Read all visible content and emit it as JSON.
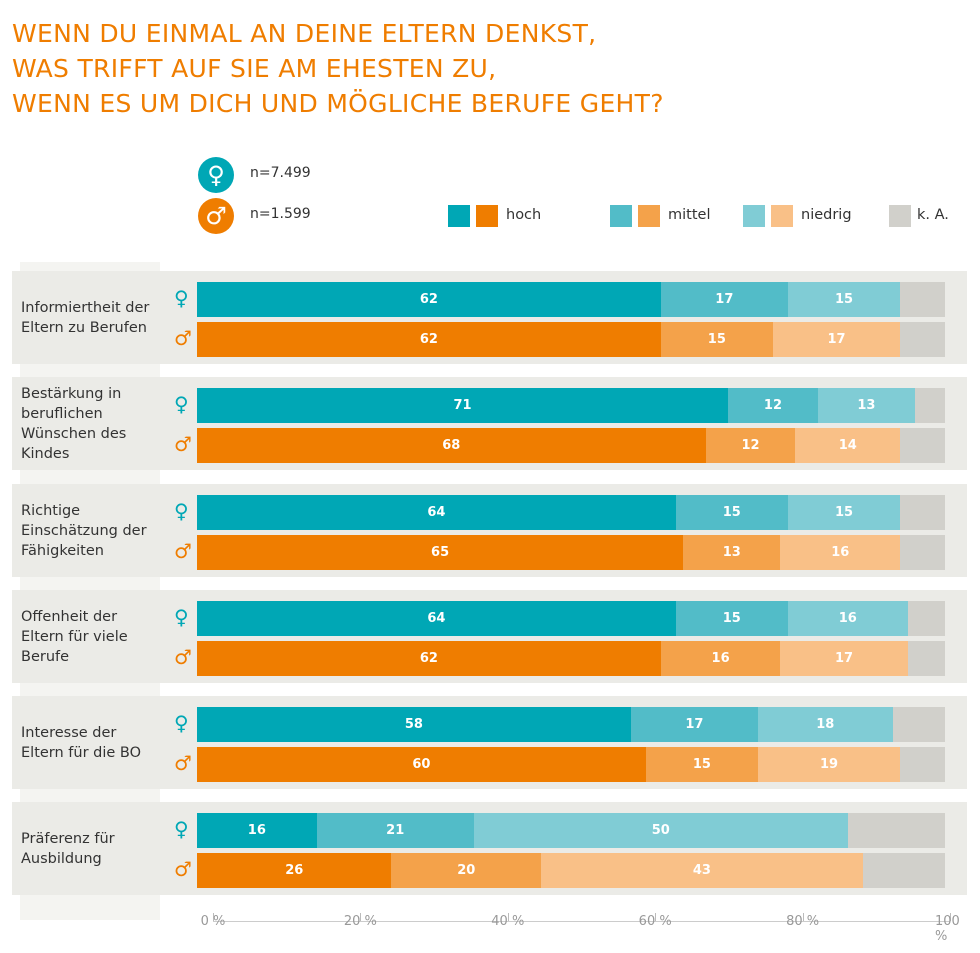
{
  "title": [
    "WENN DU EINMAL AN DEINE ELTERN DENKST,",
    "WAS TRIFFT AUF SIE AM EHESTEN ZU,",
    "WENN ES UM DICH UND MÖGLICHE BERUFE GEHT?"
  ],
  "samples": {
    "female": "n=7.499",
    "male": "n=1.599"
  },
  "icons": {
    "female": "female-symbol",
    "male": "male-symbol"
  },
  "colors": {
    "female": [
      "#00a7b5",
      "#52bcc8",
      "#80ccd5"
    ],
    "male": [
      "#ef7d00",
      "#f4a24a",
      "#f9c087"
    ],
    "ka": "#d1d0cb",
    "title": "#ef7d00"
  },
  "chart_data": {
    "type": "bar",
    "orientation": "horizontal",
    "stacked": true,
    "legend": [
      "hoch",
      "mittel",
      "niedrig",
      "k. A."
    ],
    "xlim": [
      0,
      100
    ],
    "ticks": [
      "0 %",
      "20 %",
      "40 %",
      "60 %",
      "80 %",
      "100 %"
    ],
    "categories": [
      {
        "label": "Informiertheit der Eltern zu Berufen",
        "female": [
          62,
          17,
          15
        ],
        "male": [
          62,
          15,
          17
        ]
      },
      {
        "label": "Bestärkung in beruflichen Wünschen des Kindes",
        "female": [
          71,
          12,
          13
        ],
        "male": [
          68,
          12,
          14
        ]
      },
      {
        "label": "Richtige Einschätzung der Fähigkeiten",
        "female": [
          64,
          15,
          15
        ],
        "male": [
          65,
          13,
          16
        ]
      },
      {
        "label": "Offenheit der Eltern für viele Berufe",
        "female": [
          64,
          15,
          16
        ],
        "male": [
          62,
          16,
          17
        ]
      },
      {
        "label": "Interesse der Eltern für die BO",
        "female": [
          58,
          17,
          18
        ],
        "male": [
          60,
          15,
          19
        ]
      },
      {
        "label": "Präferenz für Ausbildung",
        "female": [
          16,
          21,
          50
        ],
        "male": [
          26,
          20,
          43
        ]
      }
    ]
  }
}
